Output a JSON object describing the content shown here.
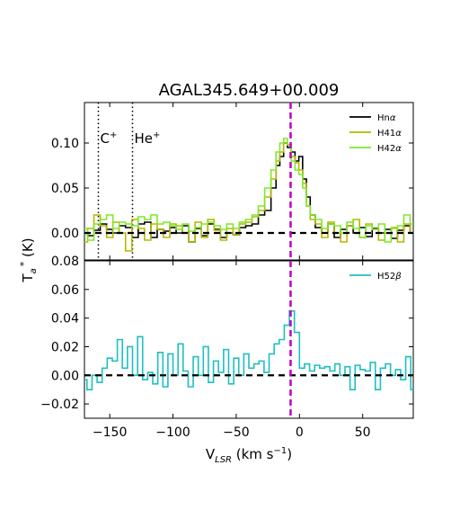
{
  "chart_data": {
    "type": "line",
    "title": "AGAL345.649+00.009",
    "xlabel_main": "V",
    "xlabel_sub": "LSR",
    "xlabel_rest": " (km s",
    "xlabel_sup": "−1",
    "xlabel_end": ")",
    "ylabel_main": "T",
    "ylabel_sub": "a",
    "ylabel_sup": "*",
    "ylabel_end": " (K)",
    "xlim": [
      -170,
      90
    ],
    "x_ticks": [
      -150,
      -100,
      -50,
      0,
      50
    ],
    "x_tick_labels": [
      "−150",
      "−100",
      "−50",
      "0",
      "50"
    ],
    "vline_velocity": -7,
    "annotations": [
      {
        "label": "C",
        "sup": "+",
        "x": -159
      },
      {
        "label": "He",
        "sup": "+",
        "x": -132
      }
    ],
    "colors": {
      "hna": "#000000",
      "h41a": "#b5b800",
      "h42a": "#7fe82a",
      "h52b": "#1fbfbf",
      "vline": "#c000c0",
      "baseline": "#000000"
    },
    "panels": [
      {
        "ylim": [
          -0.03,
          0.145
        ],
        "y_ticks": [
          0.0,
          0.05,
          0.1
        ],
        "y_tick_labels": [
          "0.00",
          "0.05",
          "0.10"
        ],
        "legend_position": "upper-right",
        "series": [
          {
            "name_main": "Hn",
            "name_greek": "α",
            "color_key": "hna",
            "x": [
              -170,
              -165,
              -160,
              -155,
              -150,
              -145,
              -140,
              -135,
              -130,
              -125,
              -120,
              -115,
              -110,
              -105,
              -100,
              -95,
              -90,
              -85,
              -80,
              -75,
              -70,
              -65,
              -60,
              -55,
              -50,
              -45,
              -40,
              -35,
              -30,
              -25,
              -20,
              -17,
              -14,
              -11,
              -8,
              -5,
              -2,
              1,
              4,
              7,
              10,
              15,
              20,
              25,
              30,
              35,
              40,
              45,
              50,
              55,
              60,
              65,
              70,
              75,
              80,
              85,
              90
            ],
            "y": [
              0.0,
              -0.003,
              0.003,
              0.01,
              0.004,
              0.0,
              0.008,
              0.006,
              -0.005,
              0.01,
              0.012,
              -0.005,
              0.004,
              0.002,
              0.006,
              0.0,
              0.008,
              -0.01,
              0.005,
              -0.003,
              0.01,
              0.004,
              -0.005,
              0.0,
              -0.002,
              0.006,
              0.008,
              0.01,
              0.02,
              0.025,
              0.05,
              0.075,
              0.085,
              0.1,
              0.095,
              0.09,
              0.08,
              0.085,
              0.06,
              0.04,
              0.02,
              0.006,
              0.0,
              0.01,
              -0.005,
              0.004,
              0.008,
              0.0,
              0.006,
              -0.004,
              0.005,
              0.0,
              0.004,
              -0.006,
              0.003,
              0.008,
              0.0
            ]
          },
          {
            "name_main": "H41",
            "name_greek": "α",
            "color_key": "h41a",
            "x": [
              -170,
              -165,
              -160,
              -155,
              -150,
              -145,
              -140,
              -135,
              -130,
              -125,
              -120,
              -115,
              -110,
              -105,
              -100,
              -95,
              -90,
              -85,
              -80,
              -75,
              -70,
              -65,
              -60,
              -55,
              -50,
              -45,
              -40,
              -35,
              -30,
              -25,
              -20,
              -17,
              -14,
              -11,
              -8,
              -5,
              -2,
              1,
              4,
              7,
              10,
              15,
              20,
              25,
              30,
              35,
              40,
              45,
              50,
              55,
              60,
              65,
              70,
              75,
              80,
              85,
              90
            ],
            "y": [
              -0.01,
              0.005,
              0.02,
              0.008,
              -0.005,
              0.012,
              0.0,
              -0.02,
              0.015,
              0.005,
              -0.008,
              0.01,
              0.004,
              -0.005,
              0.01,
              0.008,
              0.0,
              -0.01,
              0.012,
              -0.005,
              0.015,
              0.003,
              -0.008,
              0.005,
              -0.002,
              0.01,
              0.012,
              0.018,
              0.025,
              0.04,
              0.06,
              0.08,
              0.09,
              0.1,
              0.098,
              0.085,
              0.078,
              0.07,
              0.055,
              0.03,
              0.015,
              0.01,
              -0.005,
              0.012,
              0.0,
              -0.01,
              0.008,
              0.015,
              -0.005,
              0.01,
              0.004,
              -0.008,
              0.0,
              0.006,
              -0.01,
              0.01,
              0.0
            ]
          },
          {
            "name_main": "H42",
            "name_greek": "α",
            "color_key": "h42a",
            "x": [
              -170,
              -165,
              -160,
              -155,
              -150,
              -145,
              -140,
              -135,
              -130,
              -125,
              -120,
              -115,
              -110,
              -105,
              -100,
              -95,
              -90,
              -85,
              -80,
              -75,
              -70,
              -65,
              -60,
              -55,
              -50,
              -45,
              -40,
              -35,
              -30,
              -25,
              -20,
              -17,
              -14,
              -11,
              -8,
              -5,
              -2,
              1,
              4,
              7,
              10,
              15,
              20,
              25,
              30,
              35,
              40,
              45,
              50,
              55,
              60,
              65,
              70,
              75,
              80,
              85,
              90
            ],
            "y": [
              0.005,
              -0.008,
              0.01,
              0.015,
              0.02,
              0.005,
              0.012,
              0.01,
              0.008,
              0.018,
              0.015,
              0.02,
              0.01,
              0.012,
              0.008,
              0.004,
              0.01,
              0.002,
              0.006,
              0.01,
              0.012,
              0.008,
              0.004,
              0.01,
              0.005,
              0.012,
              0.015,
              0.02,
              0.03,
              0.05,
              0.07,
              0.09,
              0.1,
              0.105,
              0.098,
              0.08,
              0.07,
              0.065,
              0.05,
              0.03,
              0.02,
              0.015,
              0.005,
              0.01,
              0.008,
              0.0,
              0.012,
              0.005,
              -0.005,
              0.008,
              0.004,
              0.01,
              -0.01,
              0.005,
              0.008,
              0.02,
              0.01
            ]
          }
        ]
      },
      {
        "ylim": [
          -0.03,
          0.08
        ],
        "y_ticks": [
          -0.02,
          0.0,
          0.02,
          0.04,
          0.06,
          0.08
        ],
        "y_tick_labels": [
          "−0.02",
          "0.00",
          "0.02",
          "0.04",
          "0.06",
          "0.08"
        ],
        "legend_position": "upper-right",
        "series": [
          {
            "name_main": "H52",
            "name_greek": "β",
            "color_key": "h52b",
            "x": [
              -170,
              -166,
              -162,
              -158,
              -154,
              -150,
              -146,
              -142,
              -138,
              -134,
              -130,
              -126,
              -122,
              -118,
              -114,
              -110,
              -106,
              -102,
              -98,
              -94,
              -90,
              -86,
              -82,
              -78,
              -74,
              -70,
              -66,
              -62,
              -58,
              -54,
              -50,
              -46,
              -42,
              -38,
              -34,
              -30,
              -26,
              -22,
              -18,
              -14,
              -10,
              -6,
              -2,
              2,
              6,
              10,
              14,
              18,
              22,
              26,
              30,
              34,
              38,
              42,
              46,
              50,
              54,
              58,
              62,
              66,
              70,
              74,
              78,
              82,
              86,
              90
            ],
            "y": [
              -0.003,
              -0.01,
              0.0,
              -0.005,
              0.005,
              0.012,
              0.01,
              0.025,
              0.005,
              0.02,
              0.0,
              0.027,
              -0.003,
              0.002,
              -0.006,
              0.016,
              -0.008,
              0.015,
              0.0,
              0.022,
              0.003,
              -0.008,
              0.013,
              0.0,
              0.02,
              -0.005,
              0.01,
              0.002,
              0.018,
              -0.006,
              0.012,
              0.0,
              0.015,
              0.005,
              0.008,
              0.01,
              0.002,
              0.015,
              0.022,
              0.025,
              0.035,
              0.045,
              0.03,
              0.005,
              0.008,
              0.003,
              0.007,
              0.005,
              0.006,
              0.003,
              0.008,
              0.0,
              0.006,
              -0.01,
              0.007,
              0.004,
              0.003,
              0.009,
              -0.01,
              0.005,
              0.008,
              0.0,
              0.004,
              -0.003,
              0.013,
              -0.01
            ]
          }
        ]
      }
    ]
  }
}
